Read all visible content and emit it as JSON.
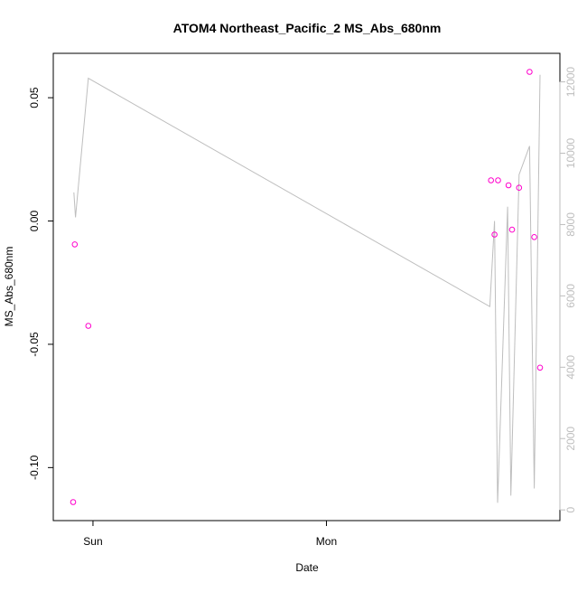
{
  "chart_data": {
    "type": "scatter",
    "title": "ATOM4 Northeast_Pacific_2 MS_Abs_680nm",
    "xlabel": "Date",
    "ylabel": "MS_Abs_680nm",
    "x_ticks": [
      {
        "label": "Sun",
        "value": 0.0
      },
      {
        "label": "Mon",
        "value": 1.0
      }
    ],
    "xlim": [
      -0.17,
      2.0
    ],
    "y_left": {
      "ticks": [
        -0.1,
        -0.05,
        0.0,
        0.05
      ],
      "tick_labels": [
        "-0.10",
        "-0.05",
        "0.00",
        "0.05"
      ],
      "lim": [
        -0.1215,
        0.068
      ]
    },
    "y_right": {
      "ticks": [
        0,
        2000,
        4000,
        6000,
        8000,
        10000,
        12000
      ],
      "tick_labels": [
        "0",
        "2000",
        "4000",
        "6000",
        "8000",
        "10000",
        "12000"
      ],
      "lim": [
        -300,
        12800
      ]
    },
    "grid": false,
    "series": [
      {
        "kind": "points",
        "axis": "left",
        "marker": "open-circle",
        "color": "#ff00cc",
        "points": [
          {
            "x": -0.085,
            "y": -0.114
          },
          {
            "x": -0.078,
            "y": -0.0095
          },
          {
            "x": -0.02,
            "y": -0.0425
          },
          {
            "x": 1.705,
            "y": 0.0165
          },
          {
            "x": 1.72,
            "y": -0.0055
          },
          {
            "x": 1.735,
            "y": 0.0165
          },
          {
            "x": 1.78,
            "y": 0.0145
          },
          {
            "x": 1.795,
            "y": -0.0035
          },
          {
            "x": 1.825,
            "y": 0.0135
          },
          {
            "x": 1.87,
            "y": 0.0605
          },
          {
            "x": 1.89,
            "y": -0.0065
          },
          {
            "x": 1.915,
            "y": -0.0595
          }
        ]
      },
      {
        "kind": "line",
        "axis": "right",
        "color": "#bebebe",
        "points": [
          {
            "x": -0.082,
            "y": 8900
          },
          {
            "x": -0.075,
            "y": 8200
          },
          {
            "x": -0.02,
            "y": 12100
          },
          {
            "x": 1.7,
            "y": 5700
          },
          {
            "x": 1.72,
            "y": 8100
          },
          {
            "x": 1.733,
            "y": 200
          },
          {
            "x": 1.776,
            "y": 8500
          },
          {
            "x": 1.79,
            "y": 400
          },
          {
            "x": 1.825,
            "y": 9400
          },
          {
            "x": 1.87,
            "y": 10200
          },
          {
            "x": 1.89,
            "y": 600
          },
          {
            "x": 1.915,
            "y": 12200
          }
        ]
      }
    ]
  }
}
